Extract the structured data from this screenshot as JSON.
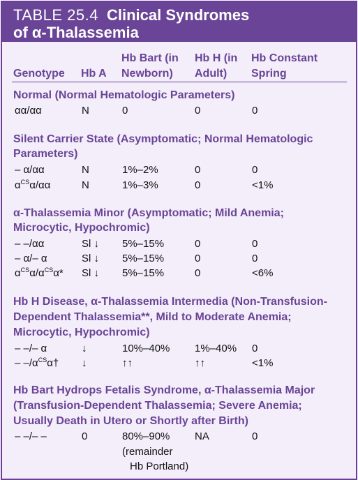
{
  "title": {
    "table_number": "TABLE 25.4",
    "title_part1": "Clinical Syndromes",
    "title_part2": "of α-Thalassemia"
  },
  "headers": {
    "genotype": "Genotype",
    "hba": "Hb A",
    "hb_bart_1": "Hb Bart (in",
    "hb_bart_2": "Newborn)",
    "hbh_1": "Hb H (in",
    "hbh_2": "Adult)",
    "cs_1": "Hb Constant",
    "cs_2": "Spring"
  },
  "sections": [
    {
      "heading_lines": [
        "Normal (Normal Hematologic Parameters)"
      ],
      "rows": [
        {
          "genotype_main": "αα/αα",
          "hba": "N",
          "hb_bart": "0",
          "hbh": "0",
          "cs": "0"
        }
      ]
    },
    {
      "heading_lines": [
        "Silent Carrier State (Asymptomatic; Normal Hematologic",
        "Parameters)"
      ],
      "rows": [
        {
          "genotype_main": "– α/αα",
          "hba": "N",
          "hb_bart": "1%–2%",
          "hbh": "0",
          "cs": "0"
        },
        {
          "genotype_a": "α",
          "genotype_sup": "CS",
          "genotype_b": "α/αα",
          "hba": "N",
          "hb_bart": "1%–3%",
          "hbh": "0",
          "cs": "<1%"
        }
      ]
    },
    {
      "heading_lines": [
        "α-Thalassemia Minor (Asymptomatic; Mild Anemia;",
        "Microcytic, Hypochromic)"
      ],
      "rows": [
        {
          "genotype_main": "– –/αα",
          "hba": "Sl ↓",
          "hb_bart": "5%–15%",
          "hbh": "0",
          "cs": "0"
        },
        {
          "genotype_main": "– α/– α",
          "hba": "Sl ↓",
          "hb_bart": "5%–15%",
          "hbh": "0",
          "cs": "0"
        },
        {
          "genotype_a": "α",
          "genotype_sup": "CS",
          "genotype_b": "α/α",
          "genotype_sup2": "CS",
          "genotype_c": "α*",
          "hba": "Sl ↓",
          "hb_bart": "5%–15%",
          "hbh": "0",
          "cs": "<6%"
        }
      ]
    },
    {
      "heading_lines": [
        "Hb H Disease, α-Thalassemia Intermedia (Non-Transfusion-",
        "Dependent Thalassemia**, Mild to Moderate Anemia;",
        "Microcytic, Hypochromic)"
      ],
      "rows": [
        {
          "genotype_main": "– –/– α",
          "hba": "↓",
          "hb_bart": "10%–40%",
          "hbh": "1%–40%",
          "cs": "0"
        },
        {
          "genotype_a": "– –/α",
          "genotype_sup": "CS",
          "genotype_b": "α†",
          "hba": "↓",
          "hb_bart": "↑↑",
          "hbh": "↑↑",
          "cs": "<1%"
        }
      ]
    },
    {
      "heading_lines": [
        "Hb Bart Hydrops Fetalis Syndrome, α-Thalassemia Major",
        "(Transfusion-Dependent Thalassemia; Severe Anemia;",
        "Usually Death in Utero or Shortly after Birth)"
      ],
      "rows": [
        {
          "genotype_main": "– –/– –",
          "hba": "0",
          "hb_bart": "80%–90%",
          "hb_bart_note1": "(remainder",
          "hb_bart_note2": "Hb Portland)",
          "hbh": "NA",
          "cs": "0"
        }
      ]
    }
  ]
}
